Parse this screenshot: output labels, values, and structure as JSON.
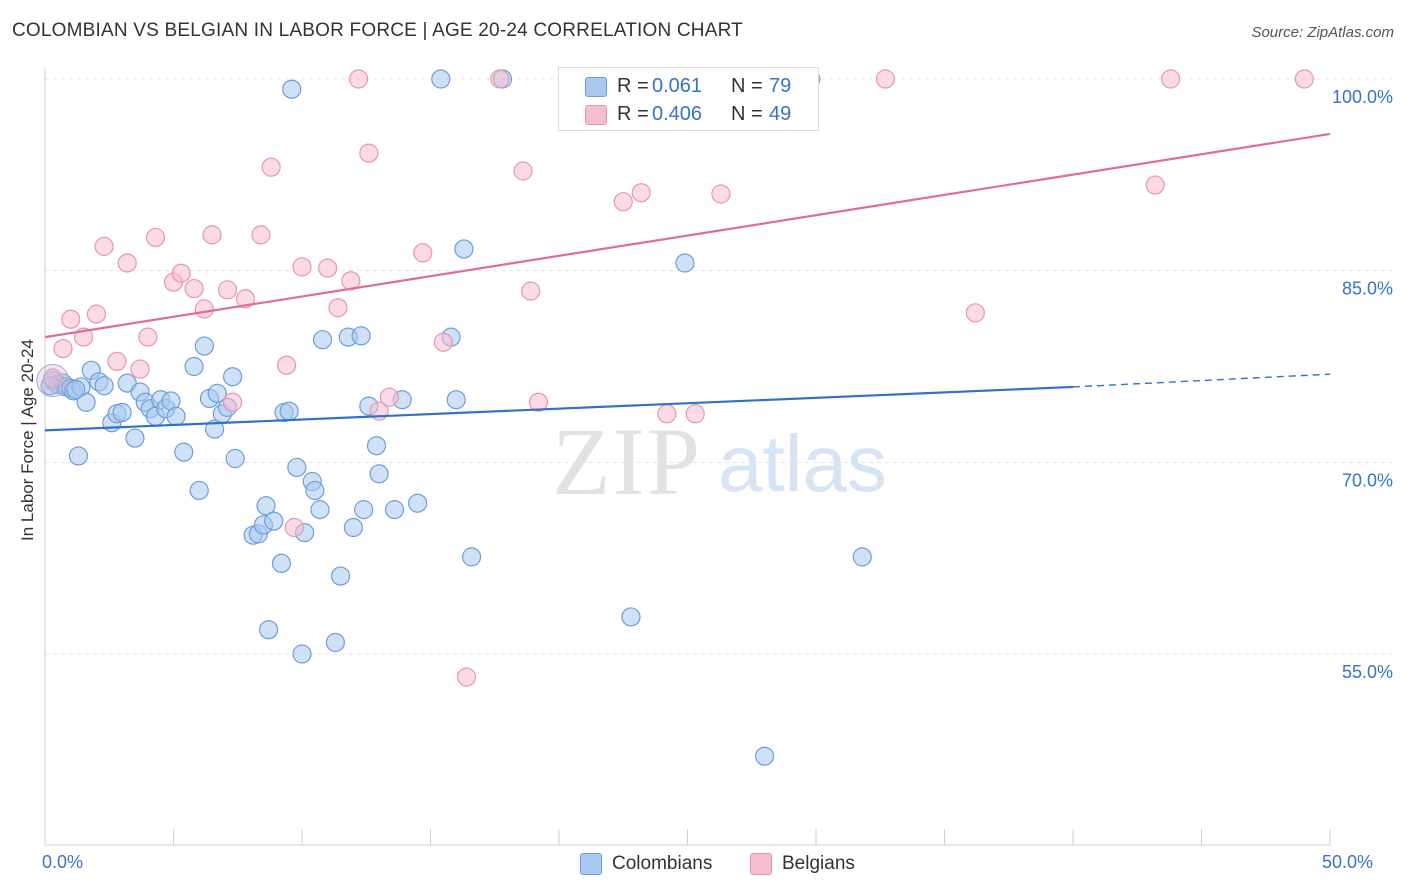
{
  "title": "COLOMBIAN VS BELGIAN IN LABOR FORCE | AGE 20-24 CORRELATION CHART",
  "source": "Source: ZipAtlas.com",
  "legend": {
    "r_label": "R =",
    "n_label": "N =",
    "rows": [
      {
        "name": "Colombians",
        "r": "0.061",
        "n": "79",
        "fill": "#a9c9f1",
        "stroke": "#6b9ed9"
      },
      {
        "name": "Belgians",
        "r": "0.406",
        "n": "49",
        "fill": "#f6bcd0",
        "stroke": "#e597b0"
      }
    ]
  },
  "watermark": {
    "zip": "ZIP",
    "atlas": "atlas"
  },
  "chart_data": {
    "type": "scatter",
    "title": "COLOMBIAN VS BELGIAN IN LABOR FORCE | AGE 20-24 CORRELATION CHART",
    "xlabel": "",
    "ylabel": "In Labor Force | Age 20-24",
    "xlim": [
      0,
      50
    ],
    "ylim": [
      40,
      102
    ],
    "x_tick_labels": [
      "0.0%",
      "50.0%"
    ],
    "y_ticks": [
      55,
      70,
      85,
      100
    ],
    "y_tick_labels": [
      "55.0%",
      "70.0%",
      "85.0%",
      "100.0%"
    ],
    "grid": "horizontal dashed",
    "legend_position": "top-center",
    "series": [
      {
        "name": "Colombians",
        "color": "#6b9ed9",
        "fill": "#a9c9f1",
        "trend": {
          "x": [
            0,
            40
          ],
          "y": [
            72.5,
            75.9
          ],
          "dashed_to": [
            50,
            76.9
          ],
          "color": "#2f72c8"
        },
        "points": [
          [
            0.3,
            76.4
          ],
          [
            0.5,
            76.1
          ],
          [
            0.7,
            76.2
          ],
          [
            0.8,
            75.9
          ],
          [
            1.0,
            75.8
          ],
          [
            1.1,
            75.6
          ],
          [
            1.4,
            75.9
          ],
          [
            1.6,
            74.7
          ],
          [
            1.8,
            77.2
          ],
          [
            2.1,
            76.3
          ],
          [
            2.3,
            76.0
          ],
          [
            2.6,
            73.1
          ],
          [
            2.8,
            73.8
          ],
          [
            3.0,
            73.9
          ],
          [
            3.2,
            76.2
          ],
          [
            3.5,
            71.9
          ],
          [
            3.7,
            75.5
          ],
          [
            3.9,
            74.7
          ],
          [
            4.1,
            74.2
          ],
          [
            4.3,
            73.6
          ],
          [
            4.5,
            74.9
          ],
          [
            4.7,
            74.2
          ],
          [
            4.9,
            74.8
          ],
          [
            5.1,
            73.6
          ],
          [
            1.3,
            70.5
          ],
          [
            5.4,
            70.8
          ],
          [
            5.8,
            77.5
          ],
          [
            6.0,
            67.8
          ],
          [
            6.2,
            79.1
          ],
          [
            6.4,
            75.0
          ],
          [
            6.6,
            72.6
          ],
          [
            6.7,
            75.4
          ],
          [
            6.9,
            73.8
          ],
          [
            7.1,
            74.3
          ],
          [
            7.3,
            76.7
          ],
          [
            7.4,
            70.3
          ],
          [
            8.1,
            64.3
          ],
          [
            8.3,
            64.4
          ],
          [
            8.5,
            65.1
          ],
          [
            8.6,
            66.6
          ],
          [
            8.7,
            56.9
          ],
          [
            8.9,
            65.4
          ],
          [
            9.2,
            62.1
          ],
          [
            9.3,
            73.9
          ],
          [
            9.5,
            74.0
          ],
          [
            9.6,
            99.2
          ],
          [
            9.8,
            69.6
          ],
          [
            10.0,
            55.0
          ],
          [
            10.1,
            64.5
          ],
          [
            10.4,
            68.5
          ],
          [
            10.5,
            67.8
          ],
          [
            10.7,
            66.3
          ],
          [
            10.8,
            79.6
          ],
          [
            11.3,
            55.9
          ],
          [
            11.5,
            61.1
          ],
          [
            11.8,
            79.8
          ],
          [
            12.0,
            64.9
          ],
          [
            12.3,
            79.9
          ],
          [
            12.4,
            66.3
          ],
          [
            12.6,
            74.4
          ],
          [
            12.9,
            71.3
          ],
          [
            13.0,
            69.1
          ],
          [
            13.6,
            66.3
          ],
          [
            13.9,
            74.9
          ],
          [
            14.5,
            66.8
          ],
          [
            15.4,
            100.0
          ],
          [
            15.8,
            79.8
          ],
          [
            16.0,
            74.9
          ],
          [
            16.3,
            86.7
          ],
          [
            16.6,
            62.6
          ],
          [
            17.8,
            100.0
          ],
          [
            22.8,
            57.9
          ],
          [
            24.9,
            85.6
          ],
          [
            26.6,
            100.0
          ],
          [
            29.8,
            100.0
          ],
          [
            28.0,
            47.0
          ],
          [
            31.8,
            62.6
          ],
          [
            0.2,
            76.0
          ],
          [
            1.2,
            75.7
          ]
        ]
      },
      {
        "name": "Belgians",
        "color": "#e597b0",
        "fill": "#f6bcd0",
        "trend": {
          "x": [
            0,
            50
          ],
          "y": [
            79.8,
            95.7
          ],
          "color": "#e06d95"
        },
        "points": [
          [
            0.3,
            76.6
          ],
          [
            0.7,
            78.9
          ],
          [
            1.0,
            81.2
          ],
          [
            1.5,
            79.8
          ],
          [
            2.0,
            81.6
          ],
          [
            2.3,
            86.9
          ],
          [
            2.8,
            77.9
          ],
          [
            3.2,
            85.6
          ],
          [
            3.7,
            77.3
          ],
          [
            4.0,
            79.8
          ],
          [
            4.3,
            87.6
          ],
          [
            5.0,
            84.1
          ],
          [
            5.3,
            84.8
          ],
          [
            5.8,
            83.6
          ],
          [
            6.2,
            82.0
          ],
          [
            6.5,
            87.8
          ],
          [
            7.1,
            83.5
          ],
          [
            7.3,
            74.7
          ],
          [
            7.8,
            82.8
          ],
          [
            8.4,
            87.8
          ],
          [
            8.8,
            93.1
          ],
          [
            9.4,
            77.6
          ],
          [
            9.7,
            64.9
          ],
          [
            10.0,
            85.3
          ],
          [
            11.0,
            85.2
          ],
          [
            11.4,
            82.1
          ],
          [
            11.9,
            84.2
          ],
          [
            12.2,
            100.0
          ],
          [
            12.6,
            94.2
          ],
          [
            13.0,
            74.0
          ],
          [
            13.4,
            75.1
          ],
          [
            14.7,
            86.4
          ],
          [
            15.5,
            79.4
          ],
          [
            16.4,
            53.2
          ],
          [
            17.7,
            100.0
          ],
          [
            18.6,
            92.8
          ],
          [
            18.9,
            83.4
          ],
          [
            19.2,
            74.7
          ],
          [
            22.5,
            90.4
          ],
          [
            23.2,
            91.1
          ],
          [
            24.2,
            73.8
          ],
          [
            25.3,
            73.8
          ],
          [
            26.3,
            91.0
          ],
          [
            28.6,
            100.0
          ],
          [
            32.7,
            100.0
          ],
          [
            36.2,
            81.7
          ],
          [
            43.2,
            91.7
          ],
          [
            43.8,
            100.0
          ],
          [
            49.0,
            100.0
          ]
        ]
      }
    ]
  }
}
